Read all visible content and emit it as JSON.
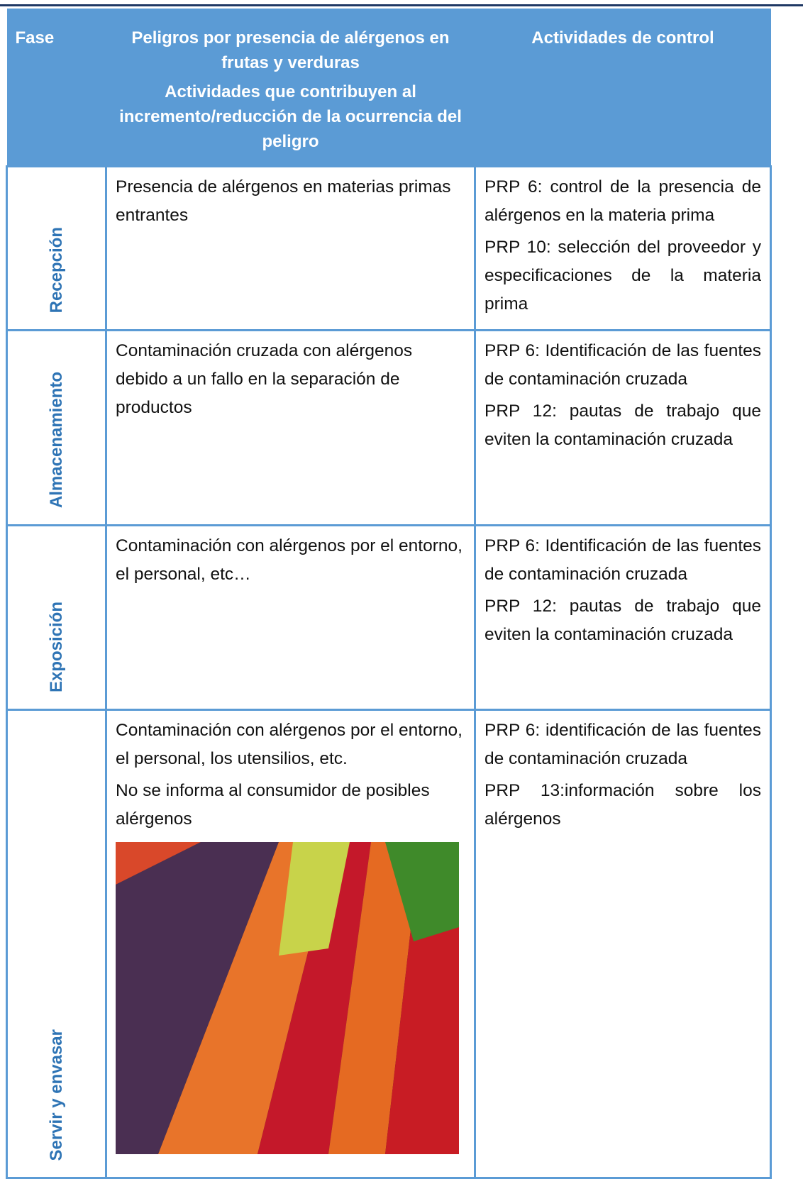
{
  "table": {
    "header": {
      "fase": "Fase",
      "peligros": [
        "Peligros por presencia de alérgenos en frutas y verduras",
        "Actividades que contribuyen al incremento/reducción de la ocurrencia del peligro"
      ],
      "control": "Actividades de control"
    },
    "rows": [
      {
        "fase": "Recepción",
        "peligros": [
          "Presencia de alérgenos en materias primas entrantes"
        ],
        "control": [
          "PRP 6: control de la presencia de alérgenos en la materia prima",
          "PRP 10: selección del proveedor y especificaciones de la materia prima"
        ]
      },
      {
        "fase": "Almacenamiento",
        "peligros": [
          "Contaminación cruzada con alérgenos debido a un fallo en la separación de productos"
        ],
        "control": [
          "PRP 6: Identificación de las fuentes de contaminación cruzada",
          "PRP 12: pautas de trabajo que eviten la contaminación cruzada"
        ]
      },
      {
        "fase": "Exposición",
        "peligros": [
          "Contaminación con alérgenos por el entorno, el personal, etc…"
        ],
        "control": [
          "PRP 6: Identificación de las fuentes de contaminación cruzada",
          "PRP 12: pautas de trabajo que eviten la contaminación cruzada"
        ]
      },
      {
        "fase": "Servir y envasar",
        "peligros": [
          "Contaminación con alérgenos por el entorno, el personal, los utensilios, etc.",
          "No se informa al consumidor de posibles alérgenos"
        ],
        "control": [
          "PRP 6: identificación de las fuentes de contaminación cruzada",
          "PRP 13:información sobre los alérgenos"
        ]
      }
    ]
  }
}
